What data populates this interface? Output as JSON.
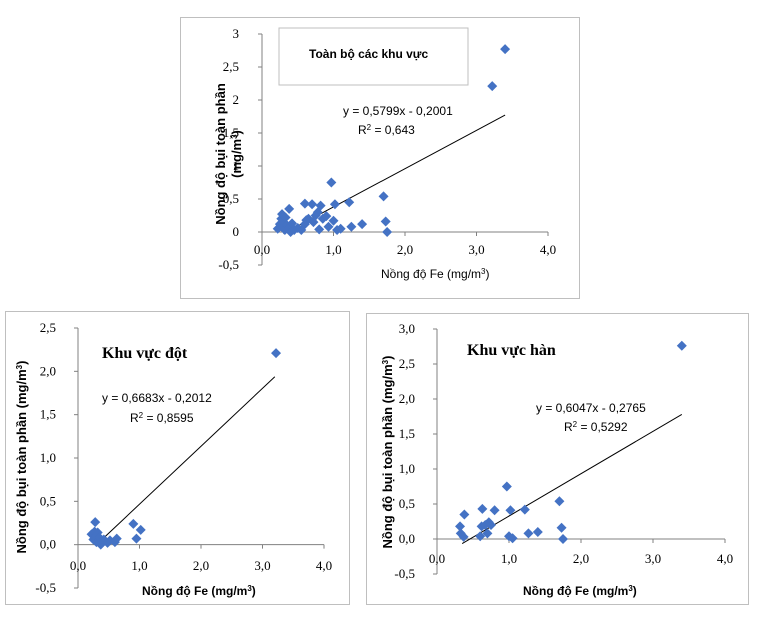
{
  "chart_data": [
    {
      "type": "scatter",
      "title": "Toàn bộ các khu vực",
      "xlabel": "Nồng độ Fe (mg/m",
      "xlabel_sup": "3",
      "xlabel_end": ")",
      "ylabel_line1": "Nồng độ bụi toàn phần",
      "ylabel_line2": "(mg/m",
      "ylabel_sup": "3",
      "ylabel_end": ")",
      "xlim": [
        0,
        4
      ],
      "ylim": [
        -0.5,
        3
      ],
      "x_ticks": [
        "0,0",
        "1,0",
        "2,0",
        "3,0",
        "4,0"
      ],
      "y_ticks": [
        "-0,5",
        "0",
        "0,5",
        "1",
        "1,5",
        "2",
        "2,5",
        "3"
      ],
      "equation": "y = 0,5799x - 0,2001",
      "r2_prefix": "R",
      "r2_sup": "2",
      "r2_value": " = 0,643",
      "marker_color": "#4472c4",
      "trendline": {
        "slope": 0.5799,
        "intercept": -0.2001,
        "x_range": [
          0.3,
          3.4
        ]
      },
      "points": [
        [
          0.22,
          0.05
        ],
        [
          0.25,
          0.12
        ],
        [
          0.27,
          0.2
        ],
        [
          0.28,
          0.27
        ],
        [
          0.3,
          0.08
        ],
        [
          0.3,
          0.15
        ],
        [
          0.32,
          0.03
        ],
        [
          0.33,
          0.22
        ],
        [
          0.35,
          0.1
        ],
        [
          0.37,
          0.05
        ],
        [
          0.38,
          0.35
        ],
        [
          0.4,
          0.0
        ],
        [
          0.42,
          0.13
        ],
        [
          0.45,
          0.03
        ],
        [
          0.5,
          0.06
        ],
        [
          0.55,
          0.03
        ],
        [
          0.6,
          0.43
        ],
        [
          0.6,
          0.12
        ],
        [
          0.62,
          0.18
        ],
        [
          0.65,
          0.2
        ],
        [
          0.7,
          0.42
        ],
        [
          0.72,
          0.15
        ],
        [
          0.75,
          0.25
        ],
        [
          0.78,
          0.3
        ],
        [
          0.8,
          0.04
        ],
        [
          0.82,
          0.4
        ],
        [
          0.85,
          0.2
        ],
        [
          0.9,
          0.24
        ],
        [
          0.93,
          0.08
        ],
        [
          0.97,
          0.75
        ],
        [
          1.0,
          0.17
        ],
        [
          1.02,
          0.42
        ],
        [
          1.05,
          0.03
        ],
        [
          1.1,
          0.05
        ],
        [
          1.22,
          0.45
        ],
        [
          1.25,
          0.08
        ],
        [
          1.4,
          0.12
        ],
        [
          1.7,
          0.54
        ],
        [
          1.73,
          0.16
        ],
        [
          1.75,
          0.0
        ],
        [
          3.22,
          2.21
        ],
        [
          3.4,
          2.77
        ]
      ]
    },
    {
      "type": "scatter",
      "title": "Khu vực đột",
      "xlabel": "Nồng độ Fe (mg/m",
      "xlabel_sup": "3",
      "xlabel_end": ")",
      "ylabel_line1": "Nồng độ bụi toàn phần  (mg/m",
      "ylabel_sup": "3",
      "ylabel_end": ")",
      "xlim": [
        0,
        4
      ],
      "ylim": [
        -0.5,
        2.5
      ],
      "x_ticks": [
        "0,0",
        "1,0",
        "2,0",
        "3,0",
        "4,0"
      ],
      "y_ticks": [
        "-0,5",
        "0,0",
        "0,5",
        "1,0",
        "1,5",
        "2,0",
        "2,5"
      ],
      "equation": "y = 0,6683x - 0,2012",
      "r2_prefix": "R",
      "r2_sup": "2",
      "r2_value": " = 0,8595",
      "marker_color": "#4472c4",
      "trendline": {
        "slope": 0.6683,
        "intercept": -0.2012,
        "x_range": [
          0.3,
          3.2
        ]
      },
      "points": [
        [
          0.22,
          0.12
        ],
        [
          0.25,
          0.06
        ],
        [
          0.27,
          0.15
        ],
        [
          0.28,
          0.26
        ],
        [
          0.3,
          0.1
        ],
        [
          0.3,
          0.03
        ],
        [
          0.32,
          0.14
        ],
        [
          0.35,
          0.08
        ],
        [
          0.37,
          0.0
        ],
        [
          0.4,
          0.03
        ],
        [
          0.42,
          0.06
        ],
        [
          0.48,
          0.02
        ],
        [
          0.52,
          0.05
        ],
        [
          0.6,
          0.03
        ],
        [
          0.63,
          0.07
        ],
        [
          0.9,
          0.24
        ],
        [
          0.95,
          0.07
        ],
        [
          1.02,
          0.17
        ],
        [
          3.22,
          2.21
        ]
      ]
    },
    {
      "type": "scatter",
      "title": "Khu vực hàn",
      "xlabel": "Nồng độ Fe (mg/m",
      "xlabel_sup": "3",
      "xlabel_end": ")",
      "ylabel_line1": "Nồng độ bụi toàn phần (mg/m",
      "ylabel_sup": "3",
      "ylabel_end": ")",
      "xlim": [
        0,
        4
      ],
      "ylim": [
        -0.5,
        3
      ],
      "x_ticks": [
        "0,0",
        "1,0",
        "2,0",
        "3,0",
        "4,0"
      ],
      "y_ticks": [
        "-0,5",
        "0,0",
        "0,5",
        "1,0",
        "1,5",
        "2,0",
        "2,5",
        "3,0"
      ],
      "equation": "y = 0,6047x - 0,2765",
      "r2_prefix": "R",
      "r2_sup": "2",
      "r2_value": " = 0,5292",
      "marker_color": "#4472c4",
      "trendline": {
        "slope": 0.6047,
        "intercept": -0.2765,
        "x_range": [
          0.35,
          3.4
        ]
      },
      "points": [
        [
          0.32,
          0.18
        ],
        [
          0.33,
          0.08
        ],
        [
          0.37,
          0.03
        ],
        [
          0.38,
          0.35
        ],
        [
          0.6,
          0.04
        ],
        [
          0.62,
          0.18
        ],
        [
          0.63,
          0.43
        ],
        [
          0.67,
          0.2
        ],
        [
          0.7,
          0.08
        ],
        [
          0.72,
          0.24
        ],
        [
          0.75,
          0.2
        ],
        [
          0.8,
          0.41
        ],
        [
          0.97,
          0.75
        ],
        [
          1.0,
          0.04
        ],
        [
          1.02,
          0.41
        ],
        [
          1.05,
          0.01
        ],
        [
          1.22,
          0.42
        ],
        [
          1.27,
          0.08
        ],
        [
          1.4,
          0.1
        ],
        [
          1.7,
          0.54
        ],
        [
          1.73,
          0.16
        ],
        [
          1.75,
          0.0
        ],
        [
          3.4,
          2.76
        ]
      ]
    }
  ]
}
